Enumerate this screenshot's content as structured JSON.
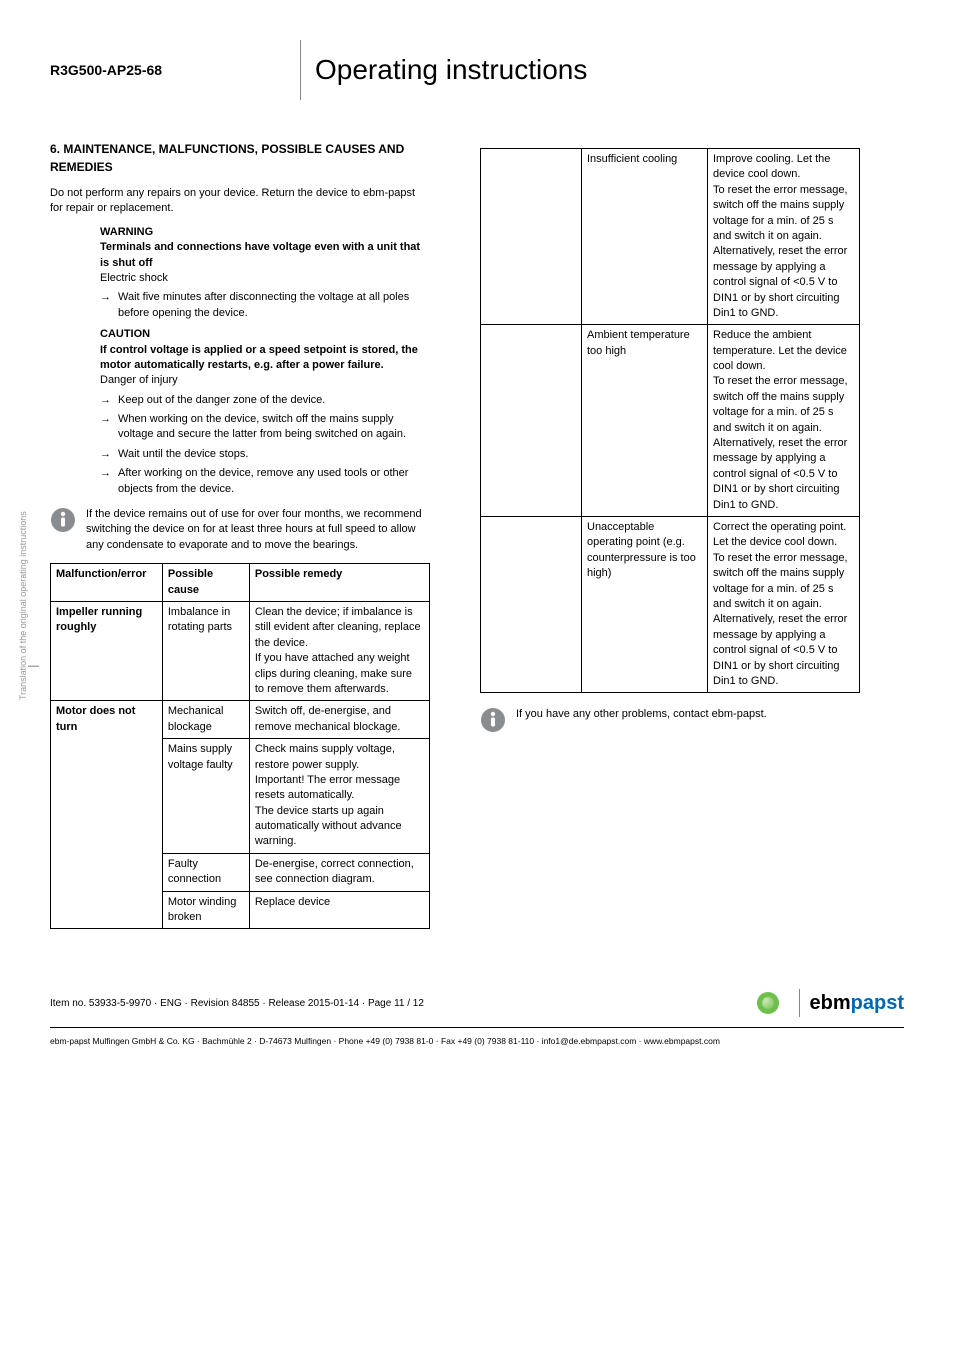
{
  "header": {
    "model": "R3G500-AP25-68",
    "title": "Operating instructions"
  },
  "side": {
    "rotated": "Translation of the original operating instructions",
    "dash": "—"
  },
  "left": {
    "section_title": "6. MAINTENANCE, MALFUNCTIONS, POSSIBLE CAUSES AND REMEDIES",
    "intro": "Do not perform any repairs on your device. Return the device to ebm-papst for repair or replacement.",
    "warning_label": "WARNING",
    "warning_bold": "Terminals and connections have voltage even with a unit that is shut off",
    "warning_sub": "Electric shock",
    "warning_item": "Wait five minutes after disconnecting the voltage at all poles before opening the device.",
    "caution_label": "CAUTION",
    "caution_bold": "If control voltage is applied or a speed setpoint is stored, the motor automatically restarts, e.g. after a power failure.",
    "caution_sub": "Danger of injury",
    "caution_items": [
      "Keep out of the danger zone of the device.",
      "When working on the device, switch off the mains supply voltage and secure the latter from being switched on again.",
      "Wait until the device stops.",
      "After working on the device, remove any used tools or other objects from the device."
    ],
    "info_text": "If the device remains out of use for over four months, we recommend switching the device on for at least three hours at full speed to allow any condensate to evaporate and to move the bearings.",
    "table": {
      "headers": [
        "Malfunction/error",
        "Possible cause",
        "Possible remedy"
      ],
      "rows": [
        {
          "error": "Impeller running roughly",
          "cause": "Imbalance in rotating parts",
          "remedy": "Clean the device; if imbalance is still evident after cleaning, replace the device.\nIf you have attached any weight clips during cleaning, make sure to remove them afterwards.",
          "error_rowspan": 1
        },
        {
          "error": "Motor does not turn",
          "cause": "Mechanical blockage",
          "remedy": "Switch off, de-energise, and remove mechanical blockage.",
          "error_rowspan": 4
        },
        {
          "error": "",
          "cause": "Mains supply voltage faulty",
          "remedy": "Check mains supply voltage,\nrestore power supply.\nImportant! The error message resets automatically.\nThe device starts up again automatically without advance warning."
        },
        {
          "error": "",
          "cause": "Faulty connection",
          "remedy": "De-energise, correct connection, see connection diagram."
        },
        {
          "error": "",
          "cause": "Motor winding broken",
          "remedy": "Replace device"
        }
      ]
    }
  },
  "right": {
    "table": {
      "rows": [
        {
          "col1": "",
          "cause": "Insufficient cooling",
          "remedy": "Improve cooling. Let the device cool down.\nTo reset the error message, switch off the mains supply voltage for a min. of 25 s and switch it on again.\nAlternatively, reset the error message by applying a control signal of <0.5 V to DIN1 or by short circuiting Din1 to GND."
        },
        {
          "col1": "",
          "cause": "Ambient temperature too high",
          "remedy": "Reduce the ambient temperature. Let the device cool down.\nTo reset the error message, switch off the mains supply voltage for a min. of 25 s and switch it on again.\nAlternatively, reset the error message by applying a control signal of <0.5 V to DIN1 or by short circuiting Din1 to GND."
        },
        {
          "col1": "",
          "cause": "Unacceptable operating point (e.g. counterpressure is too high)",
          "remedy": "Correct the operating point. Let the device cool down.\nTo reset the error message, switch off the mains supply voltage for a min. of 25 s and switch it on again.\nAlternatively, reset the error message by applying a control signal of <0.5 V to DIN1 or by short circuiting Din1 to GND."
        }
      ]
    },
    "info_text": "If you have any other problems, contact ebm-papst."
  },
  "footer": {
    "line1": "Item no. 53933-5-9970 · ENG · Revision 84855 · Release 2015-01-14 · Page 11 / 12",
    "brand_ebm": "ebm",
    "brand_papst": "papst",
    "line2": "ebm-papst Mulfingen GmbH & Co. KG · Bachmühle 2 · D-74673 Mulfingen · Phone +49 (0) 7938 81-0 · Fax +49 (0) 7938 81-110 · info1@de.ebmpapst.com · www.ebmpapst.com"
  },
  "icons": {
    "info_fill": "#8a8d8f"
  }
}
